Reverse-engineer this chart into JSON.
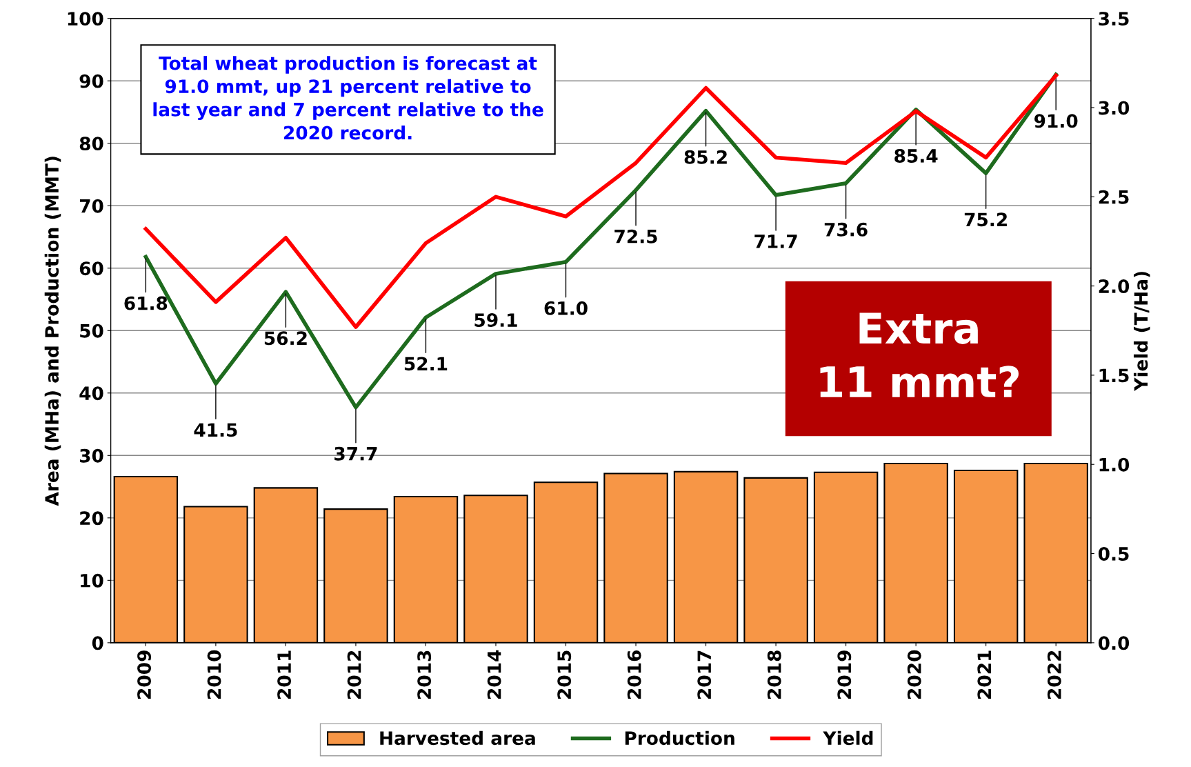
{
  "chart_data": {
    "type": "bar",
    "ylabel": "Area (MHa) and Production (MMT)",
    "y2label": "Yield (T/Ha)",
    "categories": [
      "2009",
      "2010",
      "2011",
      "2012",
      "2013",
      "2014",
      "2015",
      "2016",
      "2017",
      "2018",
      "2019",
      "2020",
      "2021",
      "2022"
    ],
    "series": [
      {
        "name": "Harvested area",
        "color": "#f79646",
        "values": [
          26.6,
          21.8,
          24.8,
          21.4,
          23.4,
          23.6,
          25.7,
          27.1,
          27.4,
          26.4,
          27.3,
          28.7,
          27.6,
          28.7
        ]
      },
      {
        "name": "Production",
        "type": "line",
        "color": "#1e6b1e",
        "values": [
          61.8,
          41.5,
          56.2,
          37.7,
          52.1,
          59.1,
          61.0,
          72.5,
          85.2,
          71.7,
          73.6,
          85.4,
          75.2,
          91.0
        ],
        "value_labels": [
          "61.8",
          "41.5",
          "56.2",
          "37.7",
          "52.1",
          "59.1",
          "61.0",
          "72.5",
          "85.2",
          "71.7",
          "73.6",
          "85.4",
          "75.2",
          "91.0"
        ]
      },
      {
        "name": "Yield",
        "type": "line",
        "axis": "y2",
        "color": "#ff0000",
        "values": [
          2.32,
          1.91,
          2.27,
          1.77,
          2.24,
          2.5,
          2.39,
          2.69,
          3.11,
          2.72,
          2.69,
          2.98,
          2.72,
          3.18
        ]
      }
    ],
    "ylim": [
      0,
      100
    ],
    "yticks": [
      0,
      10,
      20,
      30,
      40,
      50,
      60,
      70,
      80,
      90,
      100
    ],
    "y2lim": [
      0,
      3.5
    ],
    "y2ticks": [
      {
        "value": 0,
        "label": "0.0"
      },
      {
        "value": 0.5,
        "label": "0.5"
      },
      {
        "value": 1,
        "label": "1.0"
      },
      {
        "value": 1.5,
        "label": "1.5"
      },
      {
        "value": 2,
        "label": "2.0"
      },
      {
        "value": 2.5,
        "label": "2.5"
      },
      {
        "value": 3,
        "label": "3.0"
      },
      {
        "value": 3.5,
        "label": "3.5"
      }
    ],
    "annotations": [
      "Total wheat production is forecast at\n91.0 mmt, up 21 percent relative to\nlast year and 7 percent relative to the\n2020 record.",
      "Extra\n11 mmt?"
    ],
    "grid": "y",
    "legend": "bottom",
    "marker": "none",
    "line_style": "solid"
  }
}
